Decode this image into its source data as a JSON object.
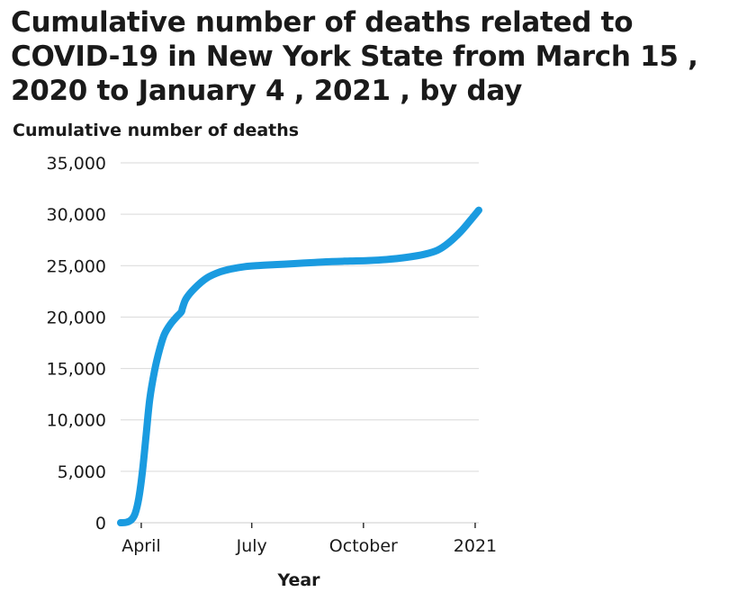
{
  "chart_data": {
    "type": "line",
    "title": "Cumulative number of deaths related to COVID-19 in New York State from March 15 , 2020 to January 4 , 2021 , by day",
    "xlabel": "Year",
    "ylabel": "Cumulative number of deaths",
    "ylim": [
      0,
      35000
    ],
    "xlim": [
      "2020-03-15",
      "2021-01-04"
    ],
    "grid": "horizontal",
    "color": "#1a9be0",
    "y_ticks": [
      {
        "value": 0,
        "label": "0"
      },
      {
        "value": 5000,
        "label": "5,000"
      },
      {
        "value": 10000,
        "label": "10,000"
      },
      {
        "value": 15000,
        "label": "15,000"
      },
      {
        "value": 20000,
        "label": "20,000"
      },
      {
        "value": 25000,
        "label": "25,000"
      },
      {
        "value": 30000,
        "label": "30,000"
      },
      {
        "value": 35000,
        "label": "35,000"
      }
    ],
    "x_ticks": [
      {
        "date": "2020-04-01",
        "label": "April"
      },
      {
        "date": "2020-07-01",
        "label": "July"
      },
      {
        "date": "2020-10-01",
        "label": "October"
      },
      {
        "date": "2021-01-01",
        "label": "2021"
      }
    ],
    "series": [
      {
        "x": [
          "2020-03-15",
          "2020-03-20",
          "2020-03-24",
          "2020-03-27",
          "2020-03-30",
          "2020-04-02",
          "2020-04-05",
          "2020-04-08",
          "2020-04-12",
          "2020-04-16",
          "2020-04-20",
          "2020-04-25",
          "2020-04-30",
          "2020-05-04",
          "2020-05-05",
          "2020-05-08",
          "2020-05-15",
          "2020-05-25",
          "2020-06-05",
          "2020-06-15",
          "2020-06-25",
          "2020-07-05",
          "2020-07-20",
          "2020-08-05",
          "2020-08-20",
          "2020-09-05",
          "2020-09-20",
          "2020-10-05",
          "2020-10-20",
          "2020-11-05",
          "2020-11-20",
          "2020-12-01",
          "2020-12-10",
          "2020-12-20",
          "2020-12-28",
          "2021-01-04"
        ],
        "values": [
          0,
          50,
          300,
          900,
          2400,
          5000,
          8500,
          12000,
          14800,
          16800,
          18300,
          19300,
          20000,
          20500,
          20900,
          21800,
          22800,
          23800,
          24400,
          24700,
          24900,
          25000,
          25100,
          25200,
          25300,
          25400,
          25450,
          25500,
          25600,
          25800,
          26100,
          26500,
          27200,
          28300,
          29400,
          30400
        ]
      }
    ]
  }
}
